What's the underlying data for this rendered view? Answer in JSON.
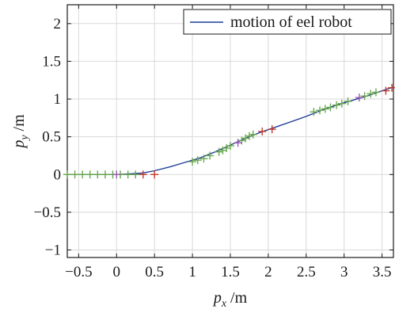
{
  "chart_data": {
    "type": "line",
    "xlabel": {
      "symbol": "p",
      "subscript": "x",
      "unit": "/m"
    },
    "ylabel": {
      "symbol": "p",
      "subscript": "y",
      "unit": "/m"
    },
    "xlim": [
      -0.65,
      3.65
    ],
    "ylim": [
      -1.1,
      2.25
    ],
    "grid": true,
    "legend_position": "top-right",
    "x_ticks": [
      -0.5,
      0,
      0.5,
      1,
      1.5,
      2,
      2.5,
      3,
      3.5
    ],
    "x_tick_labels": [
      "−0.5",
      "0",
      "0.5",
      "1",
      "1.5",
      "2",
      "2.5",
      "3",
      "3.5"
    ],
    "y_ticks": [
      -1,
      -0.5,
      0,
      0.5,
      1,
      1.5,
      2
    ],
    "y_tick_labels": [
      "−1",
      "−0.5",
      "0",
      "0.5",
      "1",
      "1.5",
      "2"
    ],
    "series": [
      {
        "name": "motion of eel robot",
        "color": "#1f3d99",
        "x": [
          -0.65,
          -0.3,
          0.0,
          0.2,
          0.35,
          0.5,
          0.7,
          0.9,
          1.1,
          1.3,
          1.5,
          1.7,
          1.9,
          2.1,
          2.3,
          2.5,
          2.7,
          2.9,
          3.1,
          3.3,
          3.5,
          3.65
        ],
        "y": [
          0,
          0,
          0,
          0.01,
          0.02,
          0.05,
          0.1,
          0.16,
          0.22,
          0.3,
          0.39,
          0.48,
          0.56,
          0.63,
          0.7,
          0.77,
          0.85,
          0.92,
          0.98,
          1.04,
          1.11,
          1.16
        ]
      }
    ],
    "markers": [
      {
        "color": "#6aa84f",
        "points": [
          [
            -0.65,
            0
          ],
          [
            -0.55,
            0
          ],
          [
            -0.45,
            0
          ],
          [
            -0.35,
            0
          ],
          [
            -0.25,
            0
          ],
          [
            -0.15,
            0
          ],
          [
            -0.05,
            0
          ],
          [
            0.05,
            0
          ],
          [
            0.15,
            0
          ],
          [
            0.25,
            0
          ],
          [
            1.0,
            0.17
          ],
          [
            1.07,
            0.19
          ],
          [
            1.15,
            0.21
          ],
          [
            1.23,
            0.25
          ],
          [
            1.35,
            0.3
          ],
          [
            1.4,
            0.32
          ],
          [
            1.45,
            0.35
          ],
          [
            1.5,
            0.38
          ],
          [
            1.65,
            0.45
          ],
          [
            1.7,
            0.48
          ],
          [
            1.75,
            0.51
          ],
          [
            1.8,
            0.53
          ],
          [
            2.6,
            0.83
          ],
          [
            2.68,
            0.85
          ],
          [
            2.75,
            0.87
          ],
          [
            2.82,
            0.89
          ],
          [
            2.9,
            0.92
          ],
          [
            2.97,
            0.94
          ],
          [
            3.05,
            0.97
          ],
          [
            3.27,
            1.04
          ],
          [
            3.35,
            1.07
          ],
          [
            3.42,
            1.09
          ]
        ]
      },
      {
        "color": "#c0392b",
        "points": [
          [
            0.35,
            0
          ],
          [
            0.5,
            0
          ],
          [
            1.92,
            0.57
          ],
          [
            2.05,
            0.6
          ],
          [
            3.55,
            1.11
          ],
          [
            3.63,
            1.15
          ]
        ]
      },
      {
        "color": "#9b59b6",
        "points": [
          [
            0.0,
            0
          ],
          [
            1.6,
            0.42
          ],
          [
            3.2,
            1.02
          ]
        ]
      }
    ]
  }
}
